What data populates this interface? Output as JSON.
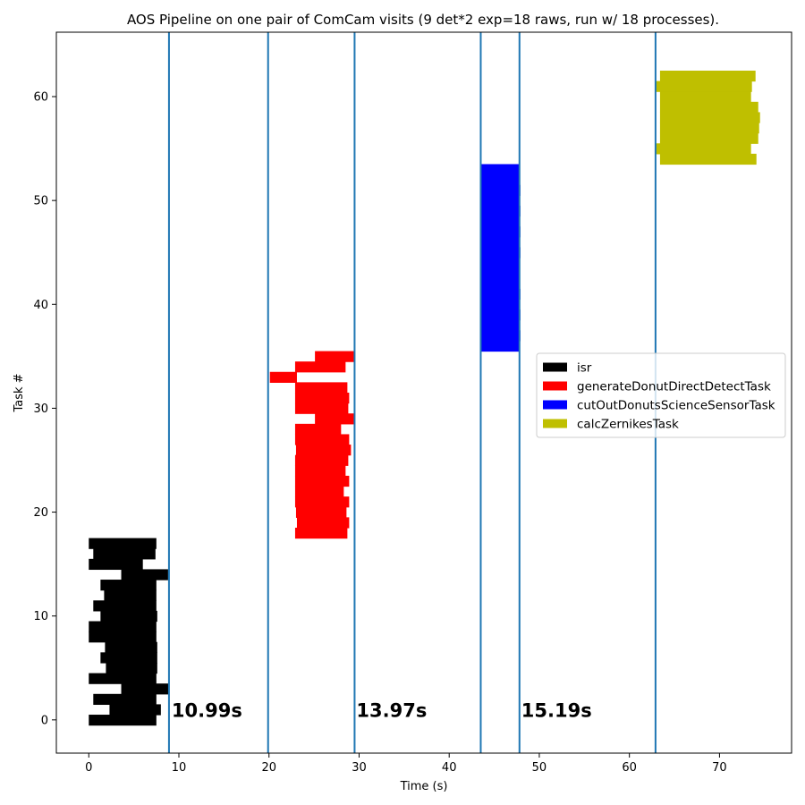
{
  "chart_data": {
    "type": "bar",
    "orientation": "horizontal-gantt",
    "title": "AOS Pipeline on one pair of ComCam visits (9 det*2 exp=18 raws, run w/ 18 processes).",
    "xlabel": "Time (s)",
    "ylabel": "Task #",
    "xlim": [
      -3.6,
      78.0
    ],
    "ylim": [
      -3.2,
      66.2
    ],
    "xticks": [
      0,
      10,
      20,
      30,
      40,
      50,
      60,
      70
    ],
    "yticks": [
      0,
      10,
      20,
      30,
      40,
      50,
      60
    ],
    "grid": false,
    "legend_position": "center-right",
    "vlines": {
      "color": "#1f77b4",
      "x": [
        8.9,
        19.9,
        29.5,
        43.5,
        47.8,
        62.9
      ]
    },
    "annotations": [
      {
        "text": "10.99s",
        "x": 9.0,
        "y": 0.3
      },
      {
        "text": "13.97s",
        "x": 29.5,
        "y": 0.3
      },
      {
        "text": "15.19s",
        "x": 47.8,
        "y": 0.3
      }
    ],
    "series": [
      {
        "name": "isr",
        "color": "#000000",
        "tasks": [
          {
            "task": 0,
            "start": 0.0,
            "end": 7.5
          },
          {
            "task": 1,
            "start": 2.3,
            "end": 8.0
          },
          {
            "task": 2,
            "start": 0.5,
            "end": 7.5
          },
          {
            "task": 3,
            "start": 3.6,
            "end": 8.9
          },
          {
            "task": 4,
            "start": 0.0,
            "end": 7.5
          },
          {
            "task": 5,
            "start": 1.9,
            "end": 7.6
          },
          {
            "task": 6,
            "start": 1.3,
            "end": 7.6
          },
          {
            "task": 7,
            "start": 1.8,
            "end": 7.6
          },
          {
            "task": 8,
            "start": 0.0,
            "end": 7.5
          },
          {
            "task": 9,
            "start": 0.0,
            "end": 7.5
          },
          {
            "task": 10,
            "start": 1.3,
            "end": 7.6
          },
          {
            "task": 11,
            "start": 0.5,
            "end": 7.5
          },
          {
            "task": 12,
            "start": 1.7,
            "end": 7.5
          },
          {
            "task": 13,
            "start": 1.3,
            "end": 7.5
          },
          {
            "task": 14,
            "start": 3.6,
            "end": 8.8
          },
          {
            "task": 15,
            "start": 0.0,
            "end": 6.0
          },
          {
            "task": 16,
            "start": 0.5,
            "end": 7.4
          },
          {
            "task": 17,
            "start": 0.0,
            "end": 7.5
          }
        ]
      },
      {
        "name": "generateDonutDirectDetectTask",
        "color": "#ff0000",
        "tasks": [
          {
            "task": 18,
            "start": 22.9,
            "end": 28.7
          },
          {
            "task": 19,
            "start": 23.1,
            "end": 28.9
          },
          {
            "task": 20,
            "start": 23.0,
            "end": 28.6
          },
          {
            "task": 21,
            "start": 22.9,
            "end": 28.9
          },
          {
            "task": 22,
            "start": 22.9,
            "end": 28.3
          },
          {
            "task": 23,
            "start": 22.9,
            "end": 28.9
          },
          {
            "task": 24,
            "start": 22.9,
            "end": 28.5
          },
          {
            "task": 25,
            "start": 22.9,
            "end": 28.8
          },
          {
            "task": 26,
            "start": 23.0,
            "end": 29.1
          },
          {
            "task": 27,
            "start": 22.9,
            "end": 28.9
          },
          {
            "task": 28,
            "start": 22.9,
            "end": 28.0
          },
          {
            "task": 29,
            "start": 25.1,
            "end": 29.5
          },
          {
            "task": 30,
            "start": 22.9,
            "end": 28.8
          },
          {
            "task": 31,
            "start": 22.9,
            "end": 28.9
          },
          {
            "task": 32,
            "start": 22.9,
            "end": 28.7
          },
          {
            "task": 33,
            "start": 20.1,
            "end": 23.1
          },
          {
            "task": 34,
            "start": 22.9,
            "end": 28.5
          },
          {
            "task": 35,
            "start": 25.1,
            "end": 29.5
          }
        ]
      },
      {
        "name": "cutOutDonutsScienceSensorTask",
        "color": "#0000ff",
        "tasks": [
          {
            "task": 36,
            "start": 43.5,
            "end": 47.8
          },
          {
            "task": 37,
            "start": 43.5,
            "end": 47.9
          },
          {
            "task": 38,
            "start": 43.5,
            "end": 47.8
          },
          {
            "task": 39,
            "start": 43.5,
            "end": 47.9
          },
          {
            "task": 40,
            "start": 43.5,
            "end": 47.8
          },
          {
            "task": 41,
            "start": 43.5,
            "end": 47.9
          },
          {
            "task": 42,
            "start": 43.5,
            "end": 47.8
          },
          {
            "task": 43,
            "start": 43.5,
            "end": 47.8
          },
          {
            "task": 44,
            "start": 43.5,
            "end": 47.8
          },
          {
            "task": 45,
            "start": 43.5,
            "end": 47.9
          },
          {
            "task": 46,
            "start": 43.5,
            "end": 47.8
          },
          {
            "task": 47,
            "start": 43.5,
            "end": 47.9
          },
          {
            "task": 48,
            "start": 43.5,
            "end": 47.8
          },
          {
            "task": 49,
            "start": 43.5,
            "end": 47.9
          },
          {
            "task": 50,
            "start": 43.5,
            "end": 47.8
          },
          {
            "task": 51,
            "start": 43.5,
            "end": 47.9
          },
          {
            "task": 52,
            "start": 43.5,
            "end": 47.8
          },
          {
            "task": 53,
            "start": 43.5,
            "end": 47.8
          }
        ]
      },
      {
        "name": "calcZernikesTask",
        "color": "#bfbf00",
        "tasks": [
          {
            "task": 54,
            "start": 63.4,
            "end": 74.1
          },
          {
            "task": 55,
            "start": 62.9,
            "end": 73.5
          },
          {
            "task": 56,
            "start": 63.4,
            "end": 74.3
          },
          {
            "task": 57,
            "start": 63.4,
            "end": 74.4
          },
          {
            "task": 58,
            "start": 63.4,
            "end": 74.5
          },
          {
            "task": 59,
            "start": 63.4,
            "end": 74.3
          },
          {
            "task": 60,
            "start": 63.4,
            "end": 73.5
          },
          {
            "task": 61,
            "start": 62.9,
            "end": 73.6
          },
          {
            "task": 62,
            "start": 63.4,
            "end": 74.0
          }
        ]
      }
    ]
  }
}
